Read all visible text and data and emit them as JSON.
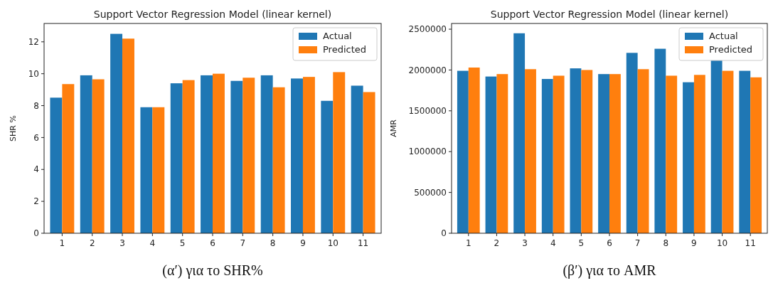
{
  "chart_data": [
    {
      "type": "bar",
      "title": "Support Vector Regression Model (linear kernel)",
      "ylabel": "SHR %",
      "categories": [
        "1",
        "2",
        "3",
        "4",
        "5",
        "6",
        "7",
        "8",
        "9",
        "10",
        "11"
      ],
      "series": [
        {
          "name": "Actual",
          "color": "#1f77b4",
          "values": [
            8.5,
            9.9,
            12.5,
            7.9,
            9.4,
            9.9,
            9.55,
            9.9,
            9.7,
            8.3,
            9.25
          ]
        },
        {
          "name": "Predicted",
          "color": "#ff7f0e",
          "values": [
            9.35,
            9.65,
            12.2,
            7.9,
            9.6,
            10.0,
            9.75,
            9.15,
            9.8,
            10.1,
            8.85
          ]
        }
      ],
      "ylim": [
        0,
        13.15
      ],
      "yticks": [
        0,
        2,
        4,
        6,
        8,
        10,
        12
      ],
      "legend": "top right",
      "annotations": [
        "(α′) για το SHR%"
      ]
    },
    {
      "type": "bar",
      "title": "Support Vector Regression Model (linear kernel)",
      "ylabel": "AMR",
      "categories": [
        "1",
        "2",
        "3",
        "4",
        "5",
        "6",
        "7",
        "8",
        "9",
        "10",
        "11"
      ],
      "series": [
        {
          "name": "Actual",
          "color": "#1f77b4",
          "values": [
            1990000,
            1920000,
            2450000,
            1890000,
            2020000,
            1950000,
            2210000,
            2260000,
            1850000,
            2120000,
            1990000
          ]
        },
        {
          "name": "Predicted",
          "color": "#ff7f0e",
          "values": [
            2030000,
            1950000,
            2010000,
            1930000,
            2000000,
            1950000,
            2010000,
            1930000,
            1940000,
            1990000,
            1910000
          ]
        }
      ],
      "ylim": [
        0,
        2570000
      ],
      "yticks": [
        0,
        500000,
        1000000,
        1500000,
        2000000,
        2500000
      ],
      "legend": "top right",
      "annotations": [
        "(β′) για το AMR"
      ]
    }
  ]
}
